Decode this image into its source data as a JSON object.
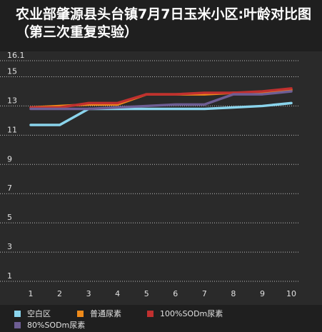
{
  "chart_data": {
    "type": "line",
    "title": "农业部肇源县头台镇7月7日玉米小区:叶龄对比图（第三次重复实验）",
    "x": [
      1,
      2,
      3,
      4,
      5,
      6,
      7,
      8,
      9,
      10
    ],
    "yticks": [
      1,
      3,
      5,
      7,
      9,
      11,
      13,
      15,
      16.1
    ],
    "ytick_labels": [
      "1",
      "3",
      "5",
      "7",
      "9",
      "11",
      "13",
      "15",
      "16.1"
    ],
    "ylim": [
      1,
      16.1
    ],
    "xlabel": "",
    "ylabel": "",
    "grid": true,
    "legend_position": "bottom",
    "series": [
      {
        "name": "空白区",
        "color": "#8ad4ec",
        "values": [
          11.7,
          11.7,
          12.8,
          12.8,
          12.8,
          12.8,
          12.8,
          12.9,
          13.0,
          13.2
        ]
      },
      {
        "name": "普通尿素",
        "color": "#ee8a1a",
        "values": [
          12.9,
          13.0,
          13.1,
          13.1,
          13.8,
          13.8,
          13.8,
          13.9,
          13.9,
          14.1
        ]
      },
      {
        "name": "100%SODm尿素",
        "color": "#c0302f",
        "values": [
          12.9,
          12.9,
          13.2,
          13.2,
          13.8,
          13.8,
          13.9,
          13.9,
          14.0,
          14.2
        ]
      },
      {
        "name": "80%SODm尿素",
        "color": "#6e5e94",
        "values": [
          12.8,
          12.8,
          12.8,
          12.9,
          13.0,
          13.1,
          13.1,
          13.8,
          13.8,
          14.0
        ]
      }
    ]
  }
}
